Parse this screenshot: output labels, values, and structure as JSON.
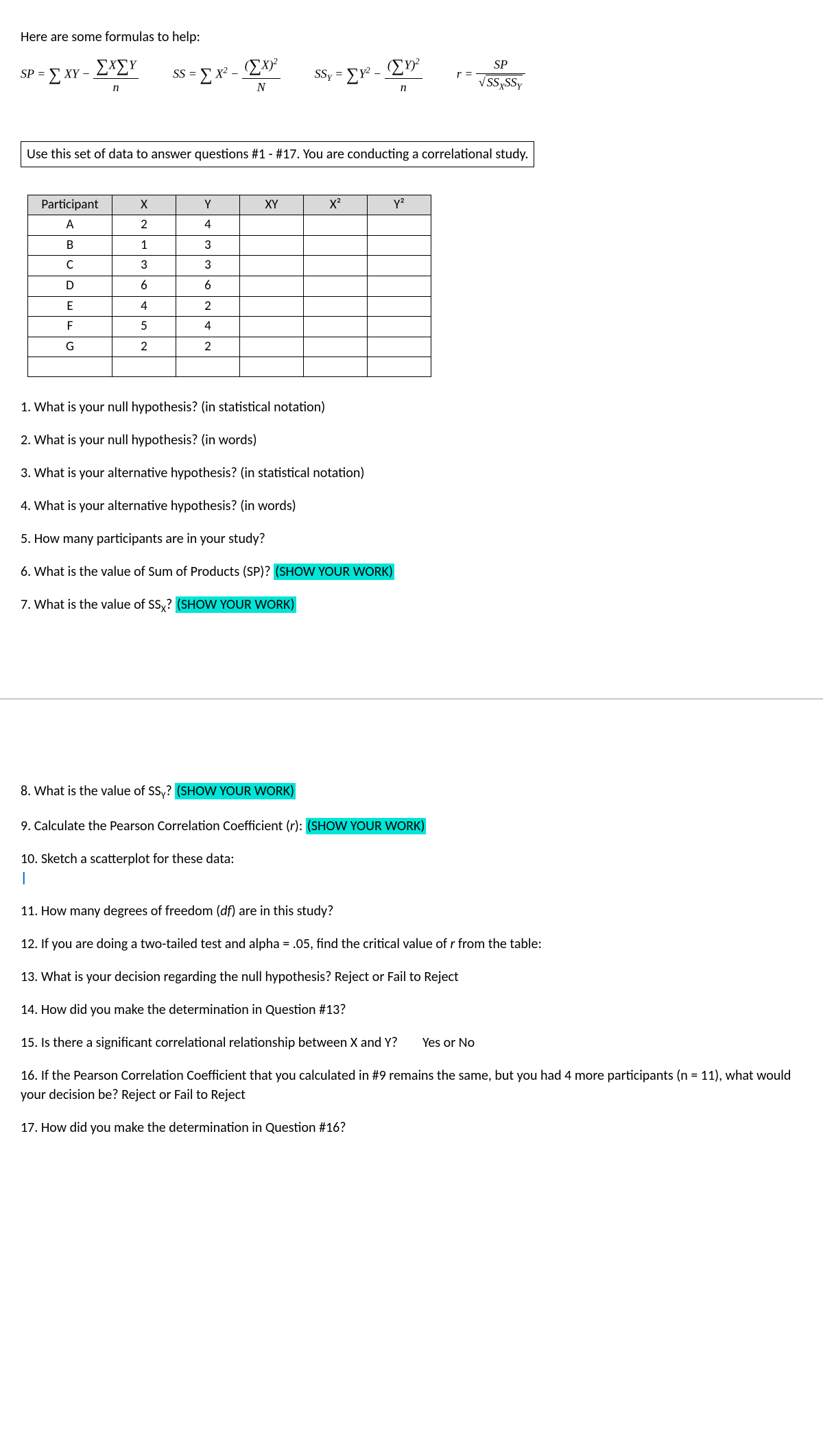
{
  "intro": "Here are some formulas to help:",
  "instruction": "Use this set of data to answer questions #1 - #17. You are conducting a correlational study.",
  "table": {
    "headers": [
      "Participant",
      "X",
      "Y",
      "XY",
      "X²",
      "Y²"
    ],
    "rows": [
      [
        "A",
        "2",
        "4",
        "",
        "",
        ""
      ],
      [
        "B",
        "1",
        "3",
        "",
        "",
        ""
      ],
      [
        "C",
        "3",
        "3",
        "",
        "",
        ""
      ],
      [
        "D",
        "6",
        "6",
        "",
        "",
        ""
      ],
      [
        "E",
        "4",
        "2",
        "",
        "",
        ""
      ],
      [
        "F",
        "5",
        "4",
        "",
        "",
        ""
      ],
      [
        "G",
        "2",
        "2",
        "",
        "",
        ""
      ],
      [
        "",
        "",
        "",
        "",
        "",
        ""
      ]
    ]
  },
  "q1": "1. What is your null hypothesis? (in statistical notation)",
  "q2": "2. What is your null hypothesis? (in words)",
  "q3": "3. What is your alternative hypothesis? (in statistical notation)",
  "q4": "4. What is your alternative hypothesis? (in words)",
  "q5": "5. How many participants are in your study?",
  "q6a": "6. What is the value of Sum of Products (SP)? ",
  "q7a": "7. What is the value of SS",
  "q7b": "? ",
  "q8a": "8. What is the value of SS",
  "q8b": "? ",
  "q9a": "9. Calculate the Pearson Correlation Coefficient (",
  "q9b": "): ",
  "q10": "10. Sketch a scatterplot for these data:",
  "q11a": "11. How many degrees of freedom (",
  "q11b": ") are in this study?",
  "q12a": "12. If you are doing a two-tailed test and alpha = .05, find the critical value of ",
  "q12b": " from the table:",
  "q13": "13. What is your decision regarding the null hypothesis? Reject or Fail to Reject",
  "q14": "14. How did you make the determination in Question #13?",
  "q15": "15. Is there a significant correlational relationship between X and Y?        Yes or No",
  "q16": "16. If the Pearson Correlation Coefficient that you calculated in #9 remains the same, but you had 4 more participants (n = 11), what would your decision be? Reject or Fail to Reject",
  "q17": "17. How did you make the determination in Question #16?",
  "show_work": "(SHOW YOUR WORK)",
  "r_italic": "r",
  "df_italic": "df",
  "sub_x": "X",
  "sub_y": "Y",
  "colors": {
    "highlight": "#00e5d8",
    "header_bg": "#d9d9d9",
    "text": "#000000",
    "bg": "#ffffff"
  }
}
